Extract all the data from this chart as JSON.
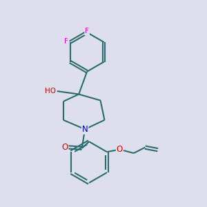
{
  "background_color": "#dde0ec",
  "bond_color": "#2a6b6b",
  "bond_width": 1.5,
  "atom_colors": {
    "F": "#ee00ee",
    "O": "#dd0000",
    "N": "#0000cc",
    "C": "#2a6b6b"
  },
  "figsize": [
    3.0,
    3.0
  ],
  "dpi": 100
}
